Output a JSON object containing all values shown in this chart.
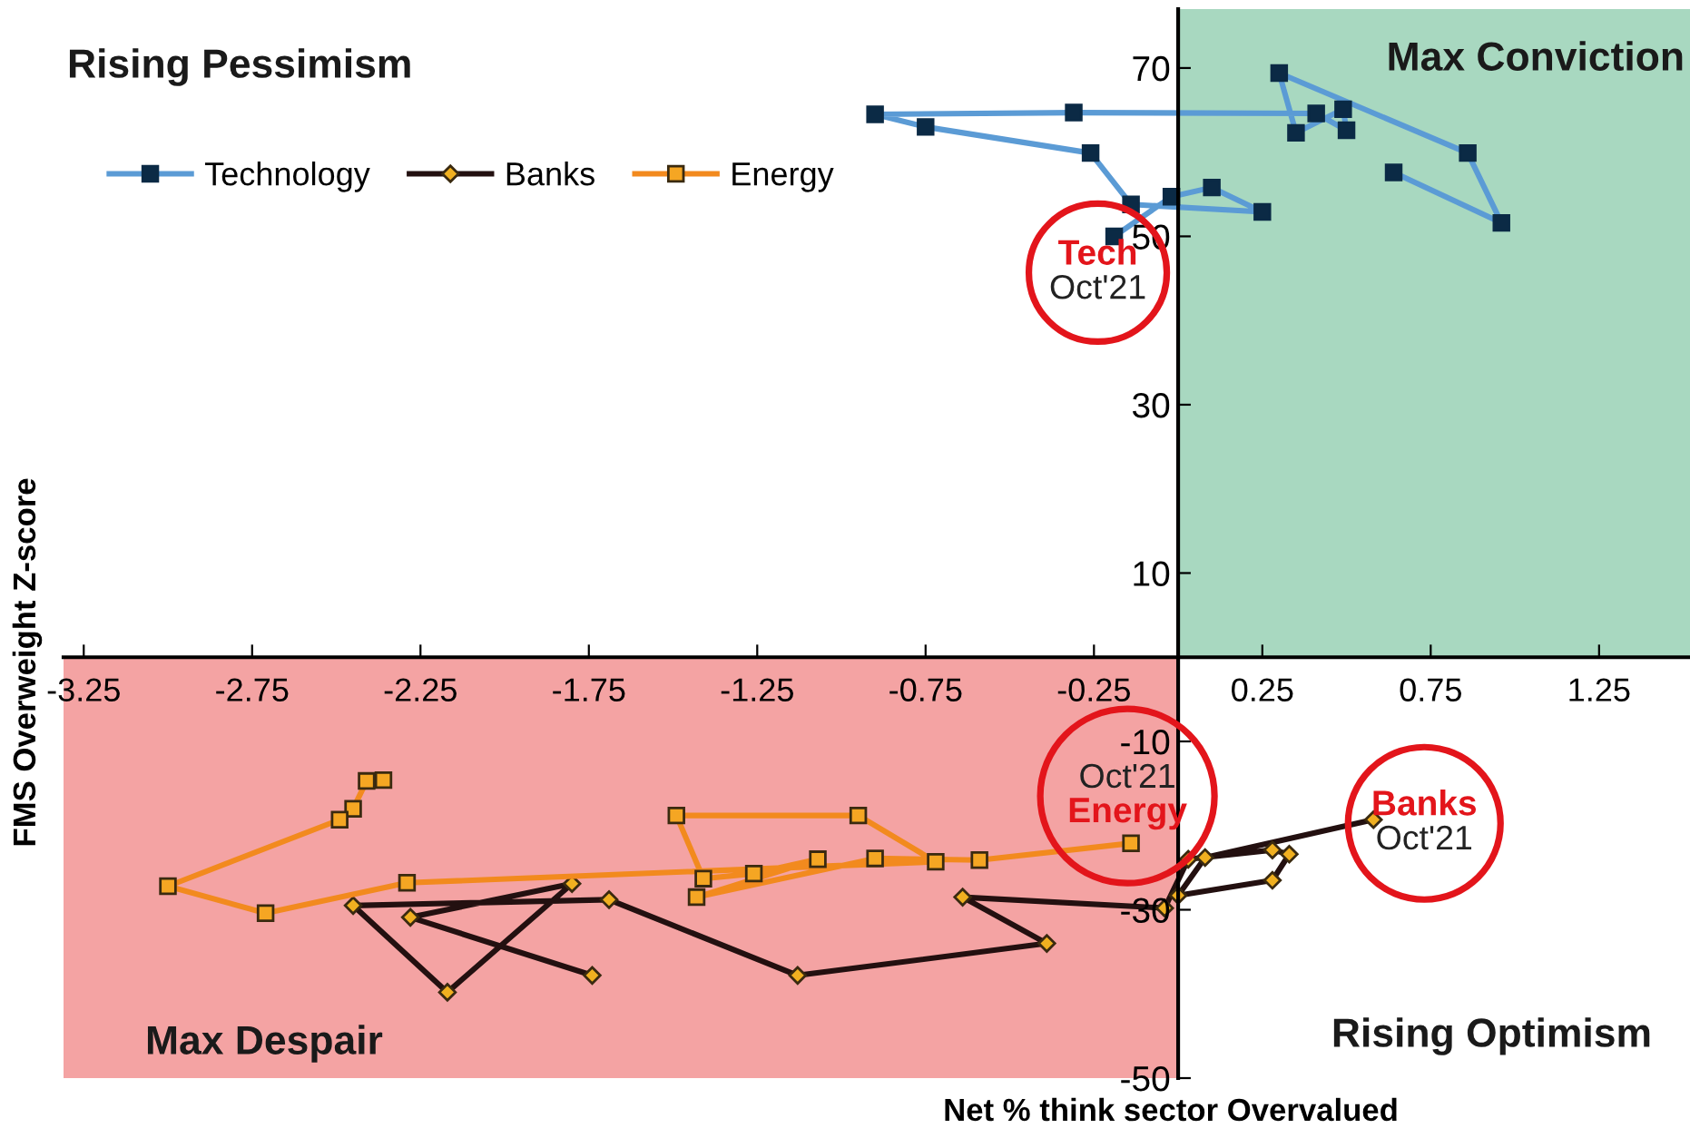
{
  "chart_data": {
    "type": "line",
    "xlabel": "Net % think sector Overvalued",
    "ylabel": "FMS Overweight Z-score",
    "xlim": [
      -3.31,
      1.52
    ],
    "ylim": [
      -50,
      77
    ],
    "xticks": [
      -3.25,
      -2.75,
      -2.25,
      -1.75,
      -1.25,
      -0.75,
      -0.25,
      0.25,
      0.75,
      1.25
    ],
    "yticks": [
      -50,
      -30,
      -10,
      10,
      30,
      50,
      70
    ],
    "legend": "top left",
    "bands": [
      {
        "axis": "x",
        "from": 0,
        "to": 1.52,
        "color": "#a8d8c0"
      },
      {
        "axis": "x",
        "from": -3.31,
        "to": 0,
        "color": "#f4a3a3"
      }
    ],
    "series": [
      {
        "name": "Technology",
        "color": "#5b9bd5",
        "marker": "square",
        "x": [
          0.64,
          0.96,
          0.86,
          0.3,
          0.35,
          0.49,
          0.5,
          0.41,
          -0.31,
          -0.9,
          -0.75,
          -0.26,
          -0.14,
          0.25,
          0.1,
          -0.02,
          -0.19
        ],
        "values": [
          57.6,
          51.6,
          59.9,
          69.4,
          62.3,
          65.1,
          62.6,
          64.6,
          64.7,
          64.5,
          63.0,
          59.9,
          53.8,
          52.9,
          55.8,
          54.7,
          50.0
        ]
      },
      {
        "name": "Banks",
        "color": "#231010",
        "marker": "diamond",
        "x": [
          -1.74,
          -2.28,
          -1.8,
          -2.17,
          -2.45,
          -1.69,
          -1.13,
          -0.39,
          -0.64,
          -0.04,
          0.03,
          0.28,
          0.33,
          0.28,
          0.0,
          0.08,
          0.58
        ],
        "values": [
          -37.8,
          -30.9,
          -26.9,
          -39.8,
          -29.5,
          -28.8,
          -37.8,
          -34.0,
          -28.5,
          -29.8,
          -24.0,
          -22.9,
          -23.4,
          -26.5,
          -28.3,
          -23.8,
          -19.3
        ]
      },
      {
        "name": "Energy",
        "color": "#f28a1e",
        "marker": "square",
        "x": [
          -2.36,
          -2.41,
          -2.45,
          -2.49,
          -3.0,
          -2.71,
          -2.29,
          -0.72,
          -0.95,
          -1.49,
          -1.41,
          -1.26,
          -1.07,
          -1.43,
          -0.9,
          -0.59,
          -0.14
        ],
        "values": [
          -14.6,
          -14.7,
          -18.0,
          -19.3,
          -27.2,
          -30.4,
          -26.8,
          -24.3,
          -18.8,
          -18.8,
          -26.3,
          -25.7,
          -24.0,
          -28.5,
          -23.9,
          -24.1,
          -22.1
        ]
      }
    ],
    "annotations": [
      "Rising Pessimism",
      "Max Conviction",
      "Max Despair",
      "Rising Optimism",
      {
        "text": "Tech Oct'21",
        "x": -0.19,
        "y": 50.0
      },
      {
        "text": "Oct'21 Energy",
        "x": -0.14,
        "y": -22.1
      },
      {
        "text": "Banks Oct'21",
        "x": 0.58,
        "y": -19.3
      }
    ]
  }
}
